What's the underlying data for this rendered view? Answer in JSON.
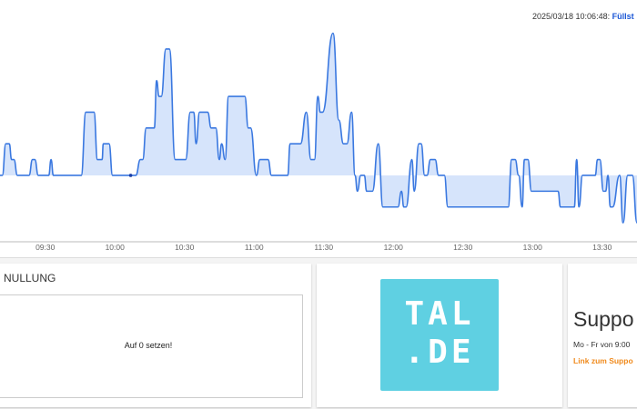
{
  "tooltip": {
    "timestamp": "2025/03/18 10:06:48:",
    "series_label": "Füllst"
  },
  "chart_data": {
    "type": "area",
    "title": "",
    "xlabel": "",
    "ylabel": "",
    "x_ticks": [
      "09:30",
      "10:00",
      "10:30",
      "11:00",
      "11:30",
      "12:00",
      "12:30",
      "13:00",
      "13:30"
    ],
    "xlim": [
      "09:10:30",
      "13:45:00"
    ],
    "ylim": [
      -4.2,
      11.1
    ],
    "baseline": 0,
    "grid": false,
    "color": "#3a78e0",
    "fill_color": "#d6e4fb",
    "highlight_point": {
      "x": "10:06:48",
      "y": 0
    },
    "points": [
      [
        "09:10:30",
        0
      ],
      [
        "09:11:30",
        0
      ],
      [
        "09:13:00",
        2
      ],
      [
        "09:14:30",
        2
      ],
      [
        "09:15:30",
        1
      ],
      [
        "09:16:30",
        1
      ],
      [
        "09:18:00",
        0
      ],
      [
        "09:23:00",
        0
      ],
      [
        "09:24:30",
        1
      ],
      [
        "09:25:30",
        1
      ],
      [
        "09:27:00",
        0
      ],
      [
        "09:31:30",
        0
      ],
      [
        "09:32:30",
        1
      ],
      [
        "09:33:30",
        0
      ],
      [
        "09:45:30",
        0
      ],
      [
        "09:47:30",
        4
      ],
      [
        "09:51:00",
        4
      ],
      [
        "09:52:30",
        1
      ],
      [
        "09:54:30",
        1
      ],
      [
        "09:55:00",
        2
      ],
      [
        "09:57:30",
        2
      ],
      [
        "09:59:00",
        0
      ],
      [
        "10:09:00",
        0
      ],
      [
        "10:11:00",
        1
      ],
      [
        "10:12:00",
        1
      ],
      [
        "10:13:30",
        3
      ],
      [
        "10:17:00",
        3
      ],
      [
        "10:18:00",
        6
      ],
      [
        "10:19:00",
        5
      ],
      [
        "10:20:00",
        5
      ],
      [
        "10:22:00",
        8
      ],
      [
        "10:23:30",
        8
      ],
      [
        "10:26:00",
        1
      ],
      [
        "10:30:30",
        1
      ],
      [
        "10:32:30",
        4
      ],
      [
        "10:34:00",
        4
      ],
      [
        "10:35:00",
        2
      ],
      [
        "10:36:30",
        4
      ],
      [
        "10:40:00",
        4
      ],
      [
        "10:41:30",
        3
      ],
      [
        "10:43:30",
        3
      ],
      [
        "10:45:00",
        1
      ],
      [
        "10:46:00",
        2
      ],
      [
        "10:47:30",
        1
      ],
      [
        "10:49:00",
        5
      ],
      [
        "10:56:00",
        5
      ],
      [
        "10:57:30",
        3
      ],
      [
        "10:58:30",
        3
      ],
      [
        "11:01:00",
        0
      ],
      [
        "11:02:30",
        1
      ],
      [
        "11:06:00",
        1
      ],
      [
        "11:07:30",
        0
      ],
      [
        "11:14:30",
        0
      ],
      [
        "11:15:30",
        2
      ],
      [
        "11:20:00",
        2
      ],
      [
        "11:22:30",
        4
      ],
      [
        "11:24:30",
        1
      ],
      [
        "11:26:00",
        1
      ],
      [
        "11:27:30",
        5
      ],
      [
        "11:28:30",
        4
      ],
      [
        "11:29:30",
        4
      ],
      [
        "11:34:00",
        9
      ],
      [
        "11:36:30",
        3.5
      ],
      [
        "11:38:30",
        2
      ],
      [
        "11:40:00",
        2
      ],
      [
        "11:42:00",
        4
      ],
      [
        "11:43:30",
        0
      ],
      [
        "11:44:30",
        -1
      ],
      [
        "11:46:00",
        0
      ],
      [
        "11:47:30",
        0
      ],
      [
        "11:48:30",
        -1
      ],
      [
        "11:51:00",
        -1
      ],
      [
        "11:53:30",
        2
      ],
      [
        "11:55:30",
        -2
      ],
      [
        "12:02:00",
        -2
      ],
      [
        "12:03:30",
        -1
      ],
      [
        "12:04:30",
        -2
      ],
      [
        "12:05:30",
        -2
      ],
      [
        "12:08:00",
        1
      ],
      [
        "12:09:00",
        -1
      ],
      [
        "12:11:00",
        2
      ],
      [
        "12:12:00",
        2
      ],
      [
        "12:13:30",
        0
      ],
      [
        "12:14:30",
        0
      ],
      [
        "12:16:00",
        1
      ],
      [
        "12:18:00",
        1
      ],
      [
        "12:19:30",
        0
      ],
      [
        "12:22:00",
        0
      ],
      [
        "12:23:30",
        -2
      ],
      [
        "12:49:30",
        -2
      ],
      [
        "12:51:00",
        1
      ],
      [
        "12:52:30",
        1
      ],
      [
        "12:54:00",
        0
      ],
      [
        "12:55:30",
        -2
      ],
      [
        "12:56:30",
        1
      ],
      [
        "12:58:00",
        1
      ],
      [
        "12:59:30",
        -1
      ],
      [
        "13:11:00",
        -1
      ],
      [
        "13:12:00",
        -2
      ],
      [
        "13:18:00",
        -2
      ],
      [
        "13:19:00",
        1
      ],
      [
        "13:20:00",
        -2
      ],
      [
        "13:21:30",
        0
      ],
      [
        "13:27:00",
        0
      ],
      [
        "13:28:00",
        1
      ],
      [
        "13:29:00",
        1
      ],
      [
        "13:30:30",
        -1
      ],
      [
        "13:31:30",
        -1
      ],
      [
        "13:32:30",
        0
      ],
      [
        "13:33:30",
        -2
      ],
      [
        "13:34:30",
        -2
      ],
      [
        "13:37:30",
        0
      ],
      [
        "13:39:00",
        -3
      ],
      [
        "13:41:00",
        0
      ],
      [
        "13:43:00",
        0
      ],
      [
        "13:45:00",
        -3
      ]
    ]
  },
  "nullung": {
    "title": "NULLUNG",
    "button_label": "Auf 0 setzen!"
  },
  "logo": {
    "line1": "TAL",
    "line2": ".DE",
    "color": "#5fd0e2"
  },
  "support": {
    "title": "Suppo",
    "hours": "Mo - Fr von 9:00",
    "link": "Link zum Suppo"
  }
}
